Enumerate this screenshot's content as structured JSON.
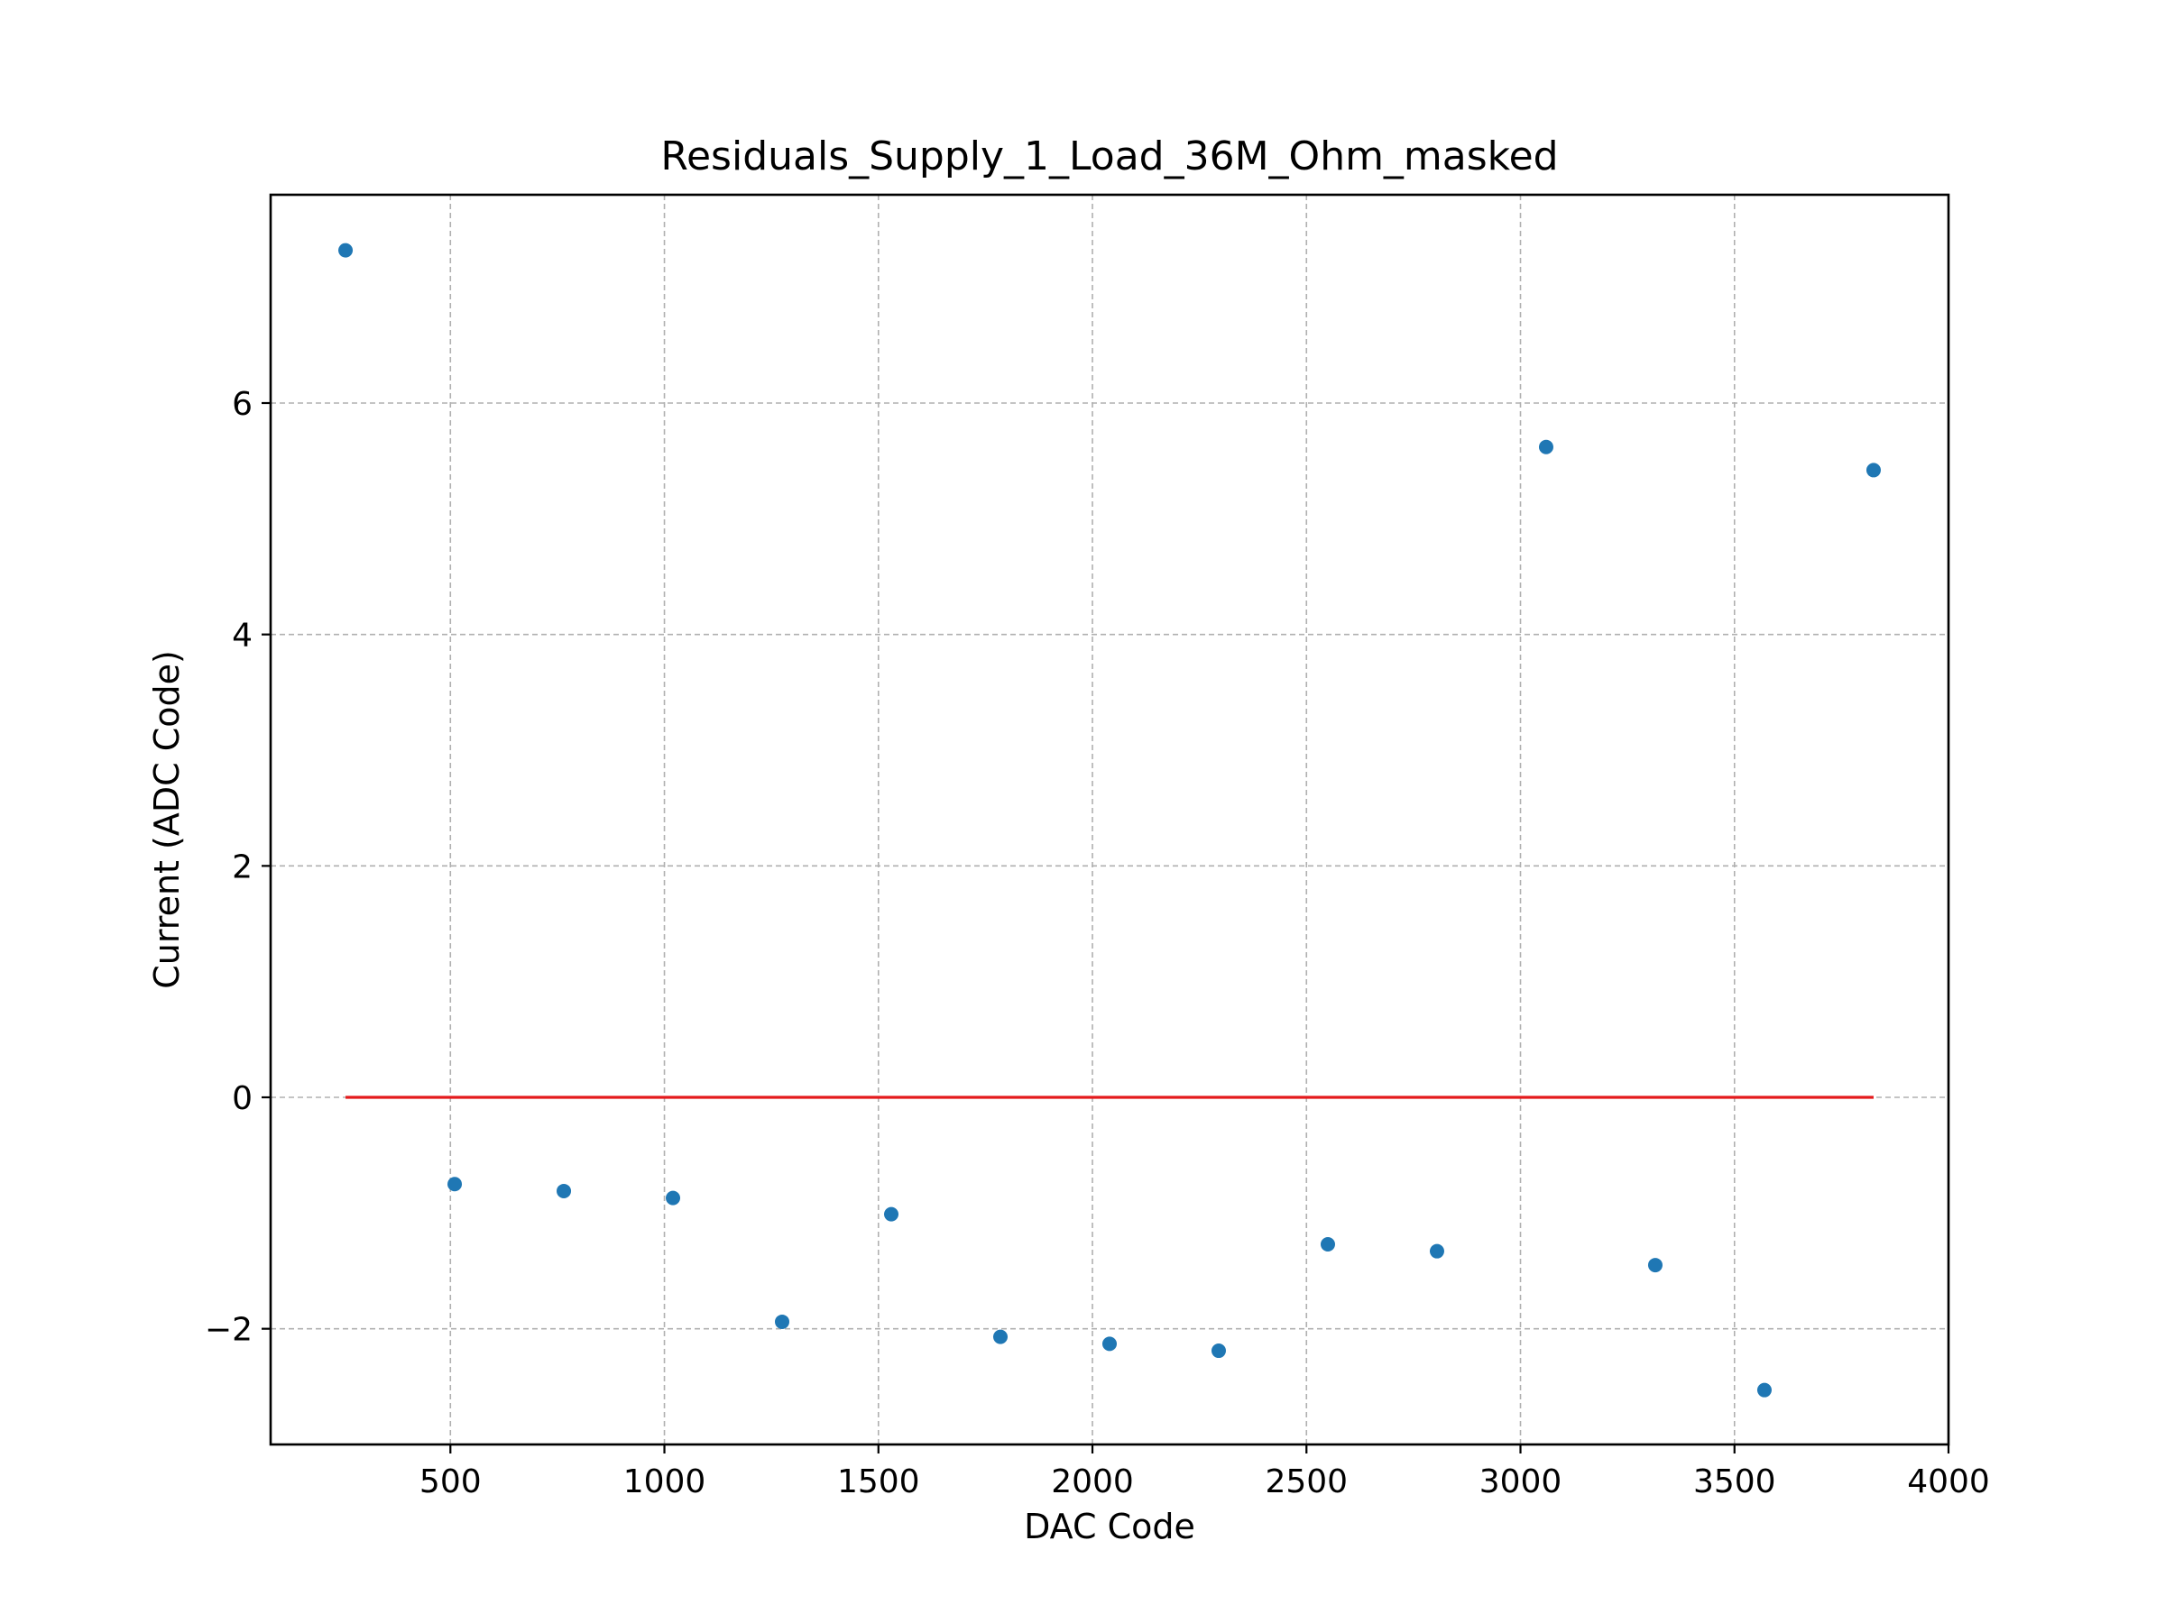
{
  "chart_data": {
    "type": "scatter",
    "title": "Residuals_Supply_1_Load_36M_Ohm_masked",
    "xlabel": "DAC Code",
    "ylabel": "Current (ADC Code)",
    "xlim": [
      80,
      4000
    ],
    "ylim": [
      -3.0,
      7.8
    ],
    "grid": true,
    "x_ticks": [
      500,
      1000,
      1500,
      2000,
      2500,
      3000,
      3500,
      4000
    ],
    "x_tick_labels": [
      "500",
      "1000",
      "1500",
      "2000",
      "2500",
      "3000",
      "3500",
      "4000"
    ],
    "y_ticks": [
      -2,
      0,
      2,
      4,
      6
    ],
    "y_tick_labels": [
      "−2",
      "0",
      "2",
      "4",
      "6"
    ],
    "series": [
      {
        "type": "scatter",
        "color": "#1f77b4",
        "points": [
          {
            "x": 255,
            "y": 7.32
          },
          {
            "x": 510,
            "y": -0.75
          },
          {
            "x": 765,
            "y": -0.81
          },
          {
            "x": 1020,
            "y": -0.87
          },
          {
            "x": 1275,
            "y": -1.94
          },
          {
            "x": 1530,
            "y": -1.01
          },
          {
            "x": 1785,
            "y": -2.07
          },
          {
            "x": 2040,
            "y": -2.13
          },
          {
            "x": 2295,
            "y": -2.19
          },
          {
            "x": 2550,
            "y": -1.27
          },
          {
            "x": 2805,
            "y": -1.33
          },
          {
            "x": 3060,
            "y": 5.62
          },
          {
            "x": 3315,
            "y": -1.45
          },
          {
            "x": 3570,
            "y": -2.53
          },
          {
            "x": 3825,
            "y": 5.42
          }
        ]
      },
      {
        "type": "line",
        "color": "#e41a1c",
        "x": [
          255,
          3825
        ],
        "y": [
          0,
          0
        ]
      }
    ]
  }
}
